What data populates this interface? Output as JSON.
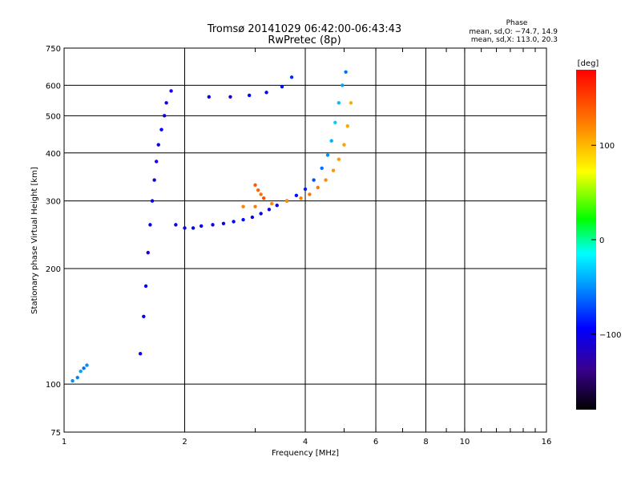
{
  "chart_data": {
    "type": "scatter",
    "title": "Tromsø 20141029 06:42:00-06:43:43",
    "subtitle": "RwPretec (8p)",
    "xlabel": "Frequency [MHz]",
    "ylabel": "Stationary phase Virtual Height [km]",
    "x_scale": "log",
    "y_scale": "log",
    "xlim": [
      1,
      16
    ],
    "ylim": [
      75,
      750
    ],
    "x_ticks": [
      1,
      2,
      4,
      6,
      8,
      10,
      16
    ],
    "x_ticklabels": [
      "1",
      "2",
      "4",
      "6",
      "8",
      "10",
      "16"
    ],
    "y_ticks": [
      75,
      100,
      200,
      300,
      400,
      500,
      600,
      750
    ],
    "y_ticklabels": [
      "75",
      "100",
      "200",
      "300",
      "400",
      "500",
      "600",
      "750"
    ],
    "grid": true,
    "stats": {
      "header": "Phase",
      "line1": "mean, sd,O: −74.7, 14.9",
      "line2": "mean, sd,X: 113.0, 20.3"
    },
    "colorbar": {
      "label": "[deg]",
      "min": -180,
      "max": 180,
      "ticks": [
        100,
        0,
        -100
      ],
      "ticklabels": [
        "100",
        "0",
        "−100"
      ]
    },
    "series": [
      {
        "x": [
          1.55,
          1.58,
          1.6,
          1.62,
          1.64,
          1.66,
          1.68,
          1.7,
          1.72,
          1.75,
          1.78,
          1.8,
          1.85,
          1.9,
          2.0,
          2.1,
          2.2,
          2.35,
          2.5,
          2.65,
          2.8,
          2.95,
          3.1,
          3.25,
          3.4,
          3.6,
          3.8,
          4.0,
          4.2,
          4.4,
          4.55,
          4.65,
          4.75,
          4.85,
          4.95,
          5.05
        ],
        "y": [
          120,
          150,
          180,
          220,
          260,
          300,
          340,
          380,
          420,
          460,
          500,
          540,
          580,
          260,
          255,
          255,
          258,
          260,
          262,
          265,
          268,
          272,
          278,
          285,
          292,
          300,
          310,
          322,
          340,
          365,
          395,
          430,
          480,
          540,
          600,
          650
        ],
        "phase": [
          -100,
          -105,
          -95,
          -110,
          -100,
          -95,
          -105,
          -110,
          -100,
          -95,
          -105,
          -100,
          -110,
          -105,
          -100,
          -95,
          -100,
          -105,
          -100,
          -95,
          -90,
          -100,
          -105,
          -110,
          -100,
          -95,
          -90,
          -85,
          -70,
          -60,
          -50,
          -40,
          -30,
          -35,
          -45,
          -60
        ]
      },
      {
        "x": [
          2.8,
          3.0,
          3.3,
          3.6,
          3.9,
          4.1,
          4.3,
          4.5,
          4.7,
          4.85,
          5.0,
          5.1,
          5.2
        ],
        "y": [
          290,
          290,
          295,
          300,
          305,
          312,
          325,
          340,
          360,
          385,
          420,
          470,
          540
        ],
        "phase": [
          120,
          125,
          120,
          118,
          122,
          128,
          125,
          118,
          115,
          112,
          110,
          108,
          105
        ]
      },
      {
        "x": [
          2.3,
          2.6,
          2.9,
          3.2,
          3.5,
          3.7
        ],
        "y": [
          560,
          560,
          565,
          575,
          595,
          630
        ],
        "phase": [
          -100,
          -105,
          -95,
          -100,
          -90,
          -80
        ]
      },
      {
        "x": [
          1.05,
          1.08,
          1.1,
          1.12,
          1.14
        ],
        "y": [
          102,
          104,
          108,
          110,
          112
        ],
        "phase": [
          -50,
          -55,
          -45,
          -60,
          -50
        ]
      },
      {
        "x": [
          3.0,
          3.05,
          3.1,
          3.15
        ],
        "y": [
          330,
          320,
          312,
          305
        ],
        "phase": [
          140,
          135,
          130,
          145
        ]
      }
    ]
  }
}
